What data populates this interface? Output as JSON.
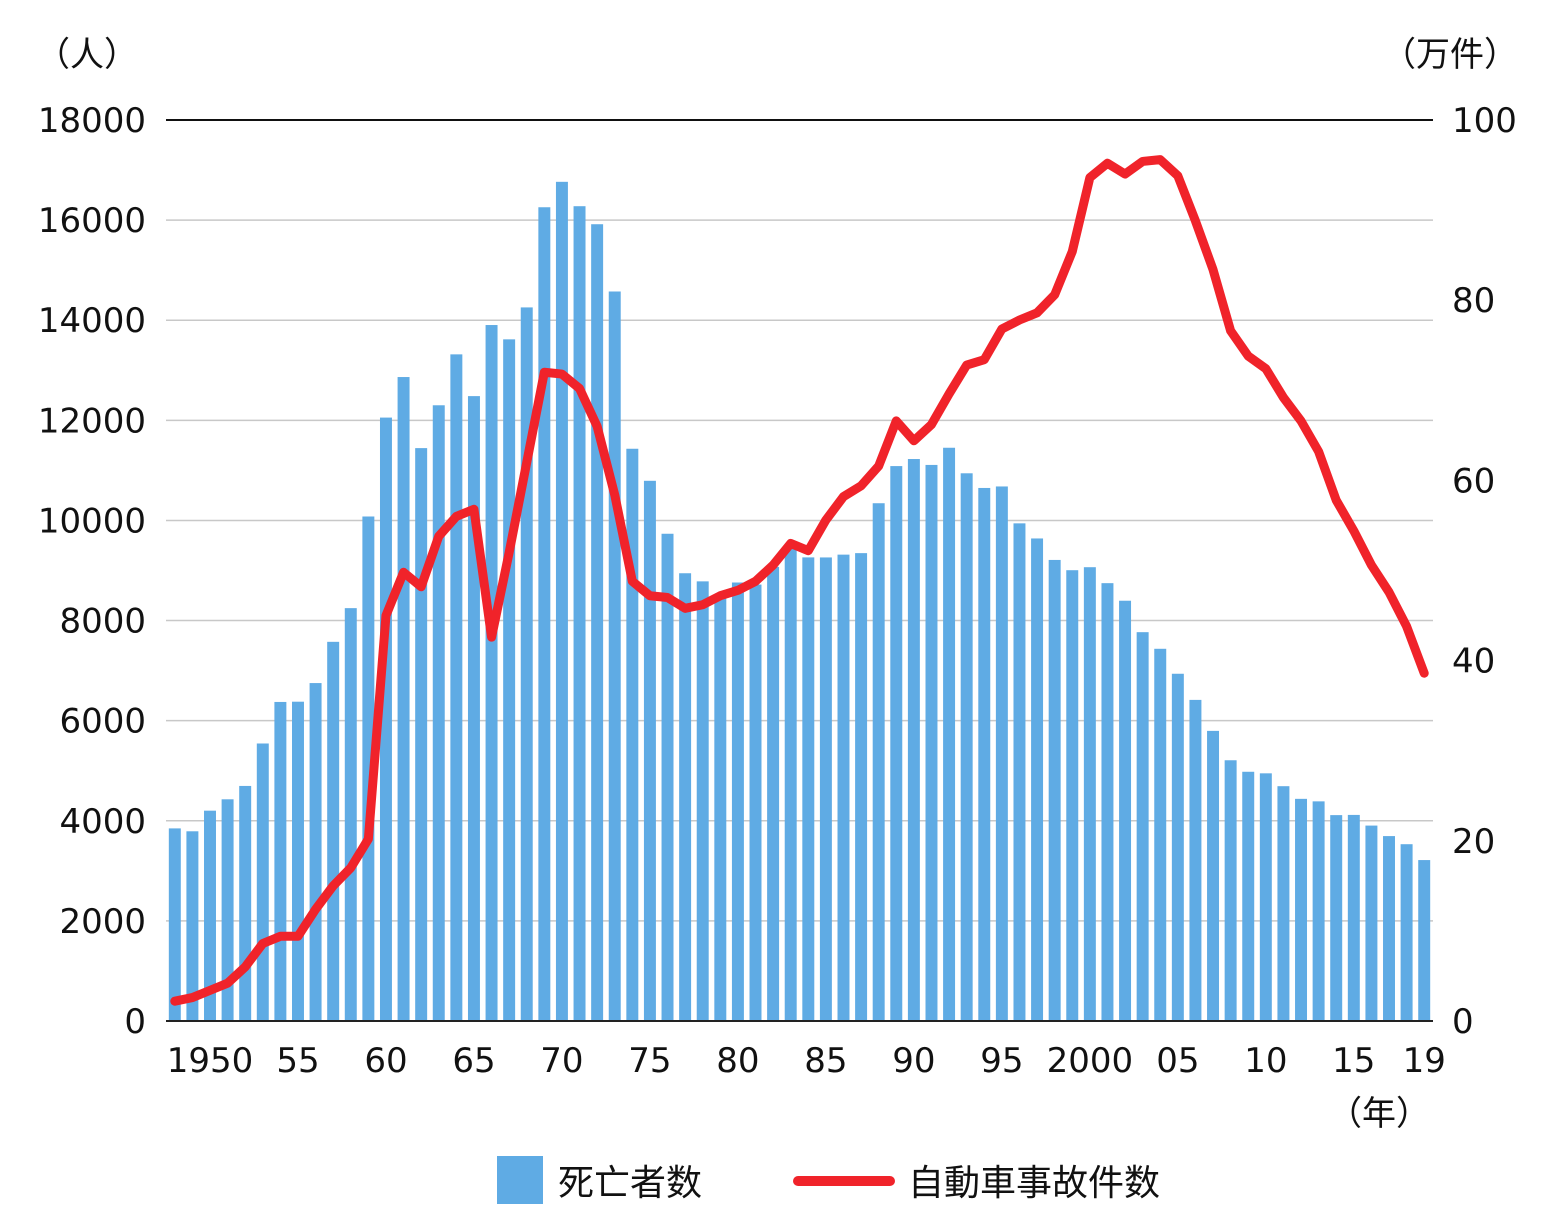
{
  "chart_data": {
    "type": "bar+line",
    "left_axis": {
      "unit": "（人）",
      "min": 0,
      "max": 18000,
      "ticks": [
        0,
        2000,
        4000,
        6000,
        8000,
        10000,
        12000,
        14000,
        16000,
        18000
      ],
      "tick_labels": [
        "0",
        "2000",
        "4000",
        "6000",
        "8000",
        "10000",
        "12000",
        "14000",
        "16000",
        "18000"
      ]
    },
    "right_axis": {
      "unit": "（万件）",
      "min": 0,
      "max": 100,
      "ticks": [
        0,
        20,
        40,
        60,
        80,
        100
      ],
      "tick_labels": [
        "0",
        "20",
        "40",
        "60",
        "80",
        "100"
      ]
    },
    "x_axis": {
      "unit": "（年）",
      "tick_years": [
        1950,
        1955,
        1960,
        1965,
        1970,
        1975,
        1980,
        1985,
        1990,
        1995,
        2000,
        2005,
        2010,
        2015,
        2019
      ],
      "tick_labels": [
        "1950",
        "55",
        "60",
        "65",
        "70",
        "75",
        "80",
        "85",
        "90",
        "95",
        "2000",
        "05",
        "10",
        "15",
        "19"
      ]
    },
    "years": [
      1948,
      1949,
      1950,
      1951,
      1952,
      1953,
      1954,
      1955,
      1956,
      1957,
      1958,
      1959,
      1960,
      1961,
      1962,
      1963,
      1964,
      1965,
      1966,
      1967,
      1968,
      1969,
      1970,
      1971,
      1972,
      1973,
      1974,
      1975,
      1976,
      1977,
      1978,
      1979,
      1980,
      1981,
      1982,
      1983,
      1984,
      1985,
      1986,
      1987,
      1988,
      1989,
      1990,
      1991,
      1992,
      1993,
      1994,
      1995,
      1996,
      1997,
      1998,
      1999,
      2000,
      2001,
      2002,
      2003,
      2004,
      2005,
      2006,
      2007,
      2008,
      2009,
      2010,
      2011,
      2012,
      2013,
      2014,
      2015,
      2016,
      2017,
      2018,
      2019
    ],
    "series": [
      {
        "name": "死亡者数",
        "type": "bar",
        "axis": "left",
        "color": "#5fabe4",
        "values": [
          3848,
          3790,
          4202,
          4429,
          4696,
          5544,
          6374,
          6379,
          6751,
          7575,
          8248,
          10079,
          12055,
          12865,
          11445,
          12301,
          13318,
          12484,
          13904,
          13618,
          14256,
          16257,
          16765,
          16278,
          15918,
          14574,
          11432,
          10792,
          9734,
          8945,
          8783,
          8466,
          8760,
          8719,
          9073,
          9520,
          9262,
          9261,
          9317,
          9347,
          10344,
          11086,
          11227,
          11109,
          11452,
          10942,
          10649,
          10679,
          9942,
          9640,
          9211,
          9006,
          9066,
          8747,
          8396,
          7768,
          7436,
          6937,
          6415,
          5796,
          5209,
          4979,
          4948,
          4691,
          4438,
          4388,
          4113,
          4117,
          3904,
          3694,
          3532,
          3215
        ]
      },
      {
        "name": "自動車事故件数",
        "type": "line",
        "axis": "right",
        "color": "#f0232a",
        "values": [
          2.2,
          2.6,
          3.4,
          4.2,
          6.0,
          8.6,
          9.4,
          9.4,
          12.4,
          15.0,
          17.0,
          20.2,
          45.0,
          49.8,
          48.2,
          53.8,
          56.0,
          56.8,
          42.6,
          52.0,
          62.0,
          72.0,
          71.8,
          70.2,
          66.0,
          58.4,
          48.8,
          47.2,
          47.0,
          45.8,
          46.2,
          47.2,
          47.8,
          48.8,
          50.6,
          53.0,
          52.2,
          55.6,
          58.2,
          59.4,
          61.6,
          66.6,
          64.4,
          66.2,
          69.6,
          72.8,
          73.4,
          76.8,
          77.8,
          78.6,
          80.6,
          85.4,
          93.6,
          95.2,
          94.0,
          95.4,
          95.6,
          93.8,
          88.8,
          83.4,
          76.6,
          73.8,
          72.4,
          69.2,
          66.6,
          63.2,
          57.8,
          54.4,
          50.6,
          47.6,
          43.8,
          38.6
        ]
      }
    ],
    "legend": {
      "position": "bottom",
      "items": [
        {
          "label": "死亡者数",
          "color": "#5fabe4",
          "kind": "bar"
        },
        {
          "label": "自動車事故件数",
          "color": "#f0232a",
          "kind": "line"
        }
      ]
    },
    "grid": true
  }
}
